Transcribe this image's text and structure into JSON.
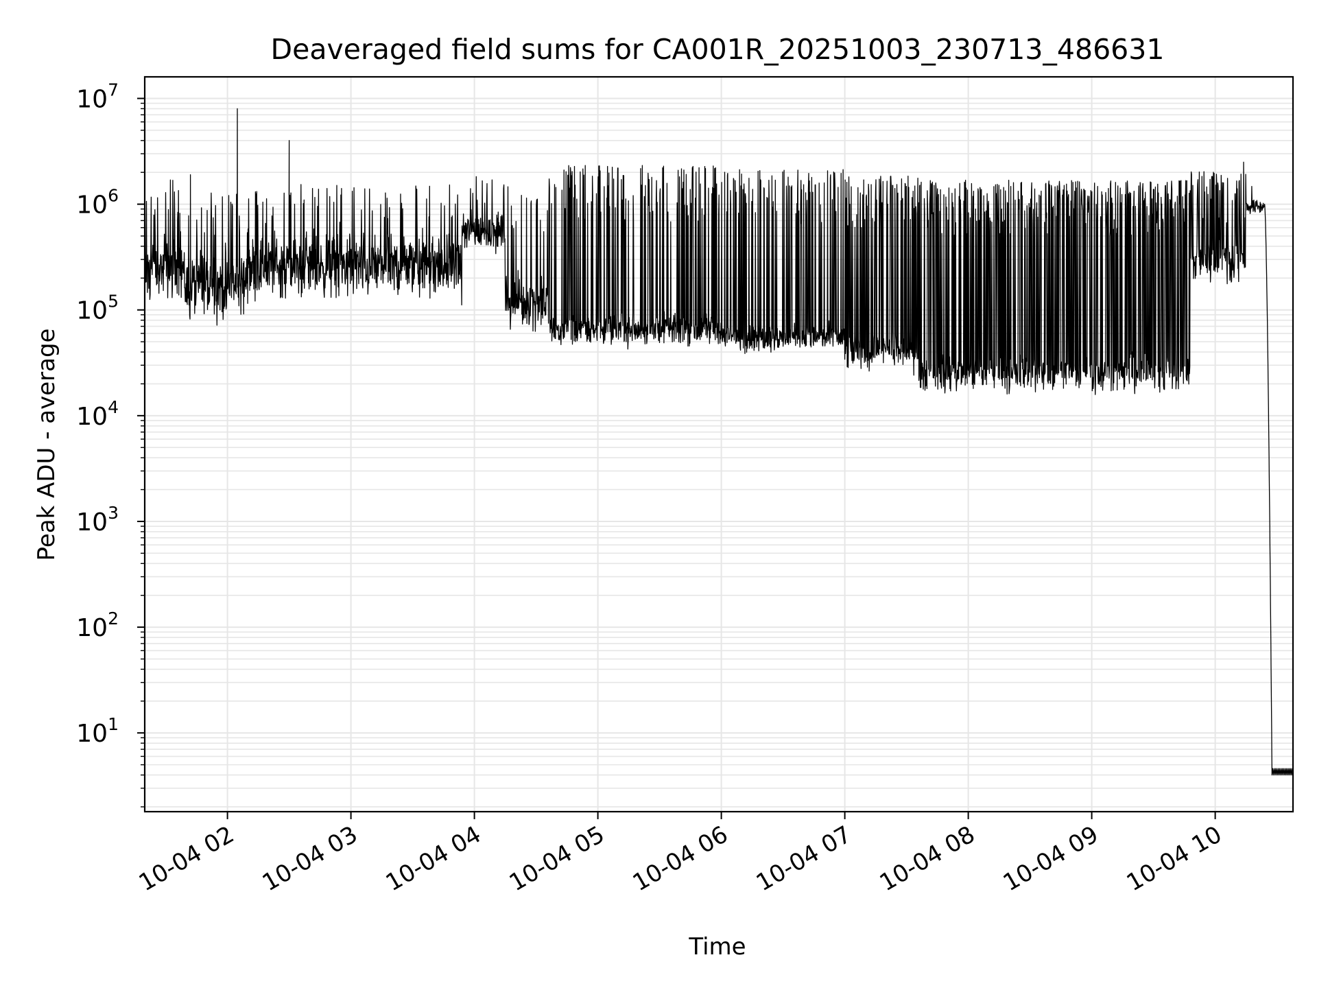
{
  "chart_data": {
    "type": "line",
    "title": "Deaveraged field sums for CA001R_20251003_230713_486631",
    "xlabel": "Time",
    "ylabel": "Peak ADU - average",
    "yscale": "log",
    "ylim": [
      1.8,
      16000000
    ],
    "xlim_hours": [
      1.33,
      10.63
    ],
    "grid": true,
    "line_color": "#000000",
    "grid_color": "#e6e6e6",
    "x_ticks": [
      {
        "hour": 2,
        "label": "10-04 02"
      },
      {
        "hour": 3,
        "label": "10-04 03"
      },
      {
        "hour": 4,
        "label": "10-04 04"
      },
      {
        "hour": 5,
        "label": "10-04 05"
      },
      {
        "hour": 6,
        "label": "10-04 06"
      },
      {
        "hour": 7,
        "label": "10-04 07"
      },
      {
        "hour": 8,
        "label": "10-04 08"
      },
      {
        "hour": 9,
        "label": "10-04 09"
      },
      {
        "hour": 10,
        "label": "10-04 10"
      }
    ],
    "y_ticks": [
      {
        "exp": 1,
        "base": "10",
        "sup": "1"
      },
      {
        "exp": 2,
        "base": "10",
        "sup": "2"
      },
      {
        "exp": 3,
        "base": "10",
        "sup": "3"
      },
      {
        "exp": 4,
        "base": "10",
        "sup": "4"
      },
      {
        "exp": 5,
        "base": "10",
        "sup": "5"
      },
      {
        "exp": 6,
        "base": "10",
        "sup": "6"
      },
      {
        "exp": 7,
        "base": "10",
        "sup": "7"
      }
    ],
    "series": [
      {
        "name": "deaveraged field sum",
        "segments": [
          {
            "t0": 1.33,
            "t1": 1.65,
            "base": 250000,
            "spread": 2.2,
            "spike_prob": 0.12,
            "spike": 1100000
          },
          {
            "t0": 1.65,
            "t1": 2.15,
            "base": 170000,
            "spread": 2.6,
            "spike_prob": 0.1,
            "spike": 900000
          },
          {
            "t0": 2.15,
            "t1": 3.9,
            "base": 260000,
            "spread": 2.2,
            "spike_prob": 0.12,
            "spike": 1000000
          },
          {
            "t0": 3.9,
            "t1": 4.25,
            "base": 550000,
            "spread": 1.6,
            "spike_prob": 0.1,
            "spike": 1200000
          },
          {
            "t0": 4.25,
            "t1": 4.6,
            "base": 120000,
            "spread": 1.9,
            "spike_prob": 0.15,
            "spike": 1000000
          },
          {
            "t0": 4.6,
            "t1": 6.0,
            "base": 65000,
            "spread": 1.5,
            "spike_prob": 0.2,
            "spike": 1500000
          },
          {
            "t0": 6.0,
            "t1": 7.0,
            "base": 55000,
            "spread": 1.4,
            "spike_prob": 0.22,
            "spike": 1400000
          },
          {
            "t0": 7.0,
            "t1": 7.6,
            "base": 40000,
            "spread": 1.6,
            "spike_prob": 0.3,
            "spike": 1200000
          },
          {
            "t0": 7.6,
            "t1": 9.8,
            "base": 25000,
            "spread": 1.6,
            "spike_prob": 0.38,
            "spike": 1100000
          },
          {
            "t0": 9.8,
            "t1": 10.25,
            "base": 300000,
            "spread": 1.8,
            "spike_prob": 0.35,
            "spike": 1400000
          },
          {
            "t0": 10.25,
            "t1": 10.4,
            "base": 950000,
            "spread": 1.2,
            "spike_prob": 0.05,
            "spike": 1200000
          }
        ],
        "peaks": [
          {
            "t": 2.08,
            "y": 8000000
          },
          {
            "t": 2.5,
            "y": 4000000
          },
          {
            "t": 10.23,
            "y": 2500000
          },
          {
            "t": 1.7,
            "y": 1900000
          }
        ],
        "falloff": {
          "t_start": 10.4,
          "t_end": 10.46,
          "y_start": 1000000,
          "y_end": 4
        },
        "tail": {
          "t0": 10.46,
          "t1": 10.63,
          "y": 4
        }
      }
    ]
  }
}
